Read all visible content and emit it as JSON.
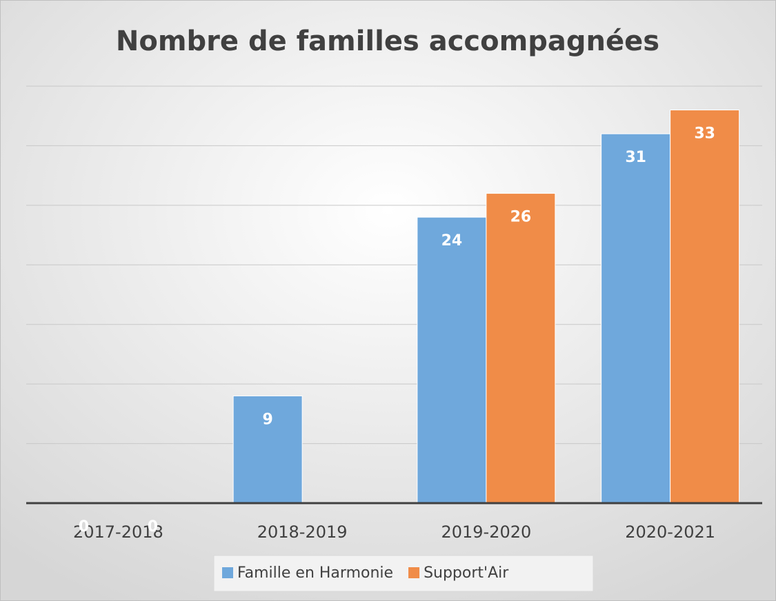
{
  "chart_data": {
    "type": "bar",
    "title": "Nombre de familles accompagnées",
    "categories": [
      "2017-2018",
      "2018-2019",
      "2019-2020",
      "2020-2021"
    ],
    "series": [
      {
        "name": "Famille en Harmonie",
        "color": "#6fa8dc",
        "values": [
          0,
          9,
          24,
          31
        ]
      },
      {
        "name": "Support'Air",
        "color": "#f08c48",
        "values": [
          0,
          null,
          26,
          33
        ]
      }
    ],
    "ylim": [
      0,
      35
    ],
    "yticks": [
      0,
      5,
      10,
      15,
      20,
      25,
      30,
      35
    ],
    "grid": true,
    "legend": "bottom"
  }
}
